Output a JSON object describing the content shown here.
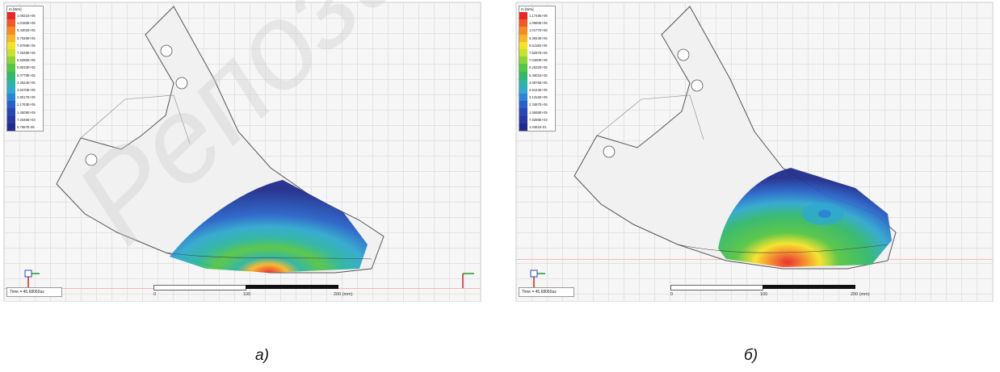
{
  "panels": [
    {
      "legend_title": "m [Wm]",
      "legend_values": [
        "1.0921E+06",
        "1.0168E+06",
        "9.4302E+05",
        "8.7049E+05",
        "7.9769E+05",
        "7.2549E+05",
        "6.5286E+05",
        "5.8033E+05",
        "5.0778E+05",
        "4.3524E+05",
        "3.6270E+05",
        "2.9017E+05",
        "2.1763E+05",
        "1.4509E+05",
        "7.2549E+04",
        "5.7657E-06"
      ],
      "time": "Time = 45.68060us",
      "scale_ticks": [
        "0",
        "100",
        "200 (mm)"
      ],
      "caption": "а)"
    },
    {
      "legend_title": "m [Wm]",
      "legend_values": [
        "1.1749E+06",
        "1.0960E+06",
        "1.0177E+06",
        "9.3944E+05",
        "8.6116E+05",
        "7.8287E+05",
        "7.0460E+05",
        "6.2632E+05",
        "5.4801E+05",
        "4.6975E+05",
        "3.9144E+05",
        "3.1316E+05",
        "2.3487E+05",
        "1.5658E+05",
        "7.8289E+04",
        "1.0461E-01"
      ],
      "time": "Time = 45.68060us",
      "scale_ticks": [
        "0",
        "100",
        "200 (mm)"
      ],
      "caption": "б)"
    }
  ],
  "legend_colors": [
    "#e8282a",
    "#f05a28",
    "#f68b25",
    "#f8b62a",
    "#f5e327",
    "#c8e030",
    "#8ed33a",
    "#56c543",
    "#32b86a",
    "#2cb5a0",
    "#30a8cf",
    "#2a86d4",
    "#2862c8",
    "#2846b4",
    "#2a37a0",
    "#1f2c8a"
  ],
  "watermark": "Репозит"
}
